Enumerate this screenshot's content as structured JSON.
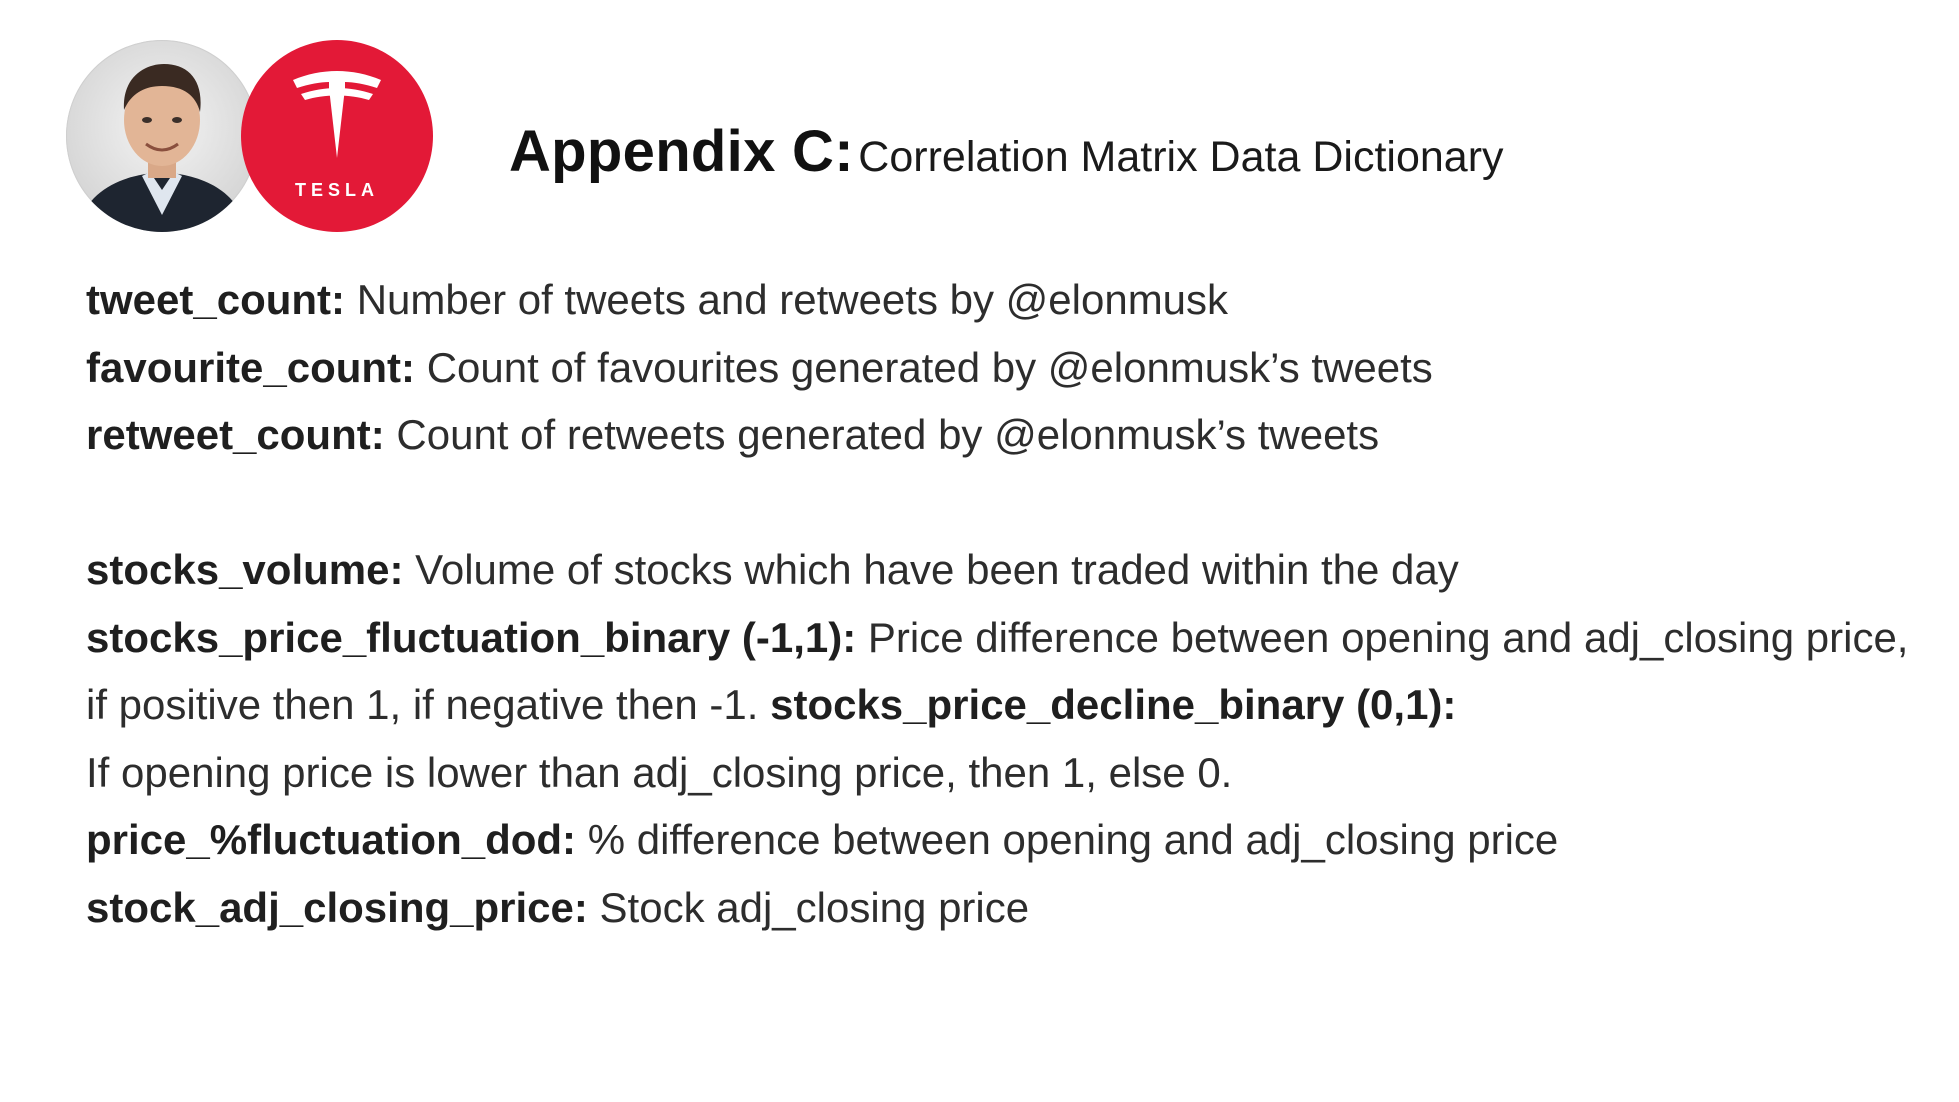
{
  "header": {
    "title_strong": "Appendix C:",
    "title_rest": "Correlation Matrix Data Dictionary",
    "logo_text": "TESLA"
  },
  "colors": {
    "tesla_red": "#e31937",
    "text_dark": "#2d2d2d"
  },
  "entries": [
    {
      "term": "tweet_count:",
      "desc": "Number of tweets and retweets by @elonmusk"
    },
    {
      "term": "favourite_count:",
      "desc": "Count of favourites generated by @elonmusk’s tweets"
    },
    {
      "term": "retweet_count:",
      "desc": "Count of retweets generated by @elonmusk’s tweets"
    },
    {
      "term": "stocks_volume:",
      "desc": "Volume of stocks which have been traded within the day"
    },
    {
      "term": "stocks_price_fluctuation_binary (-1,1):",
      "desc": "Price difference between opening and adj_closing price, if positive then 1, if negative then -1.",
      "term2": "stocks_price_decline_binary (0,1):"
    },
    {
      "desc": "If opening price is lower than adj_closing price, then 1, else 0."
    },
    {
      "term": "price_%fluctuation_dod:",
      "desc": "% difference between opening and adj_closing price"
    },
    {
      "term": "stock_adj_closing_price:",
      "desc": "Stock adj_closing price"
    }
  ]
}
